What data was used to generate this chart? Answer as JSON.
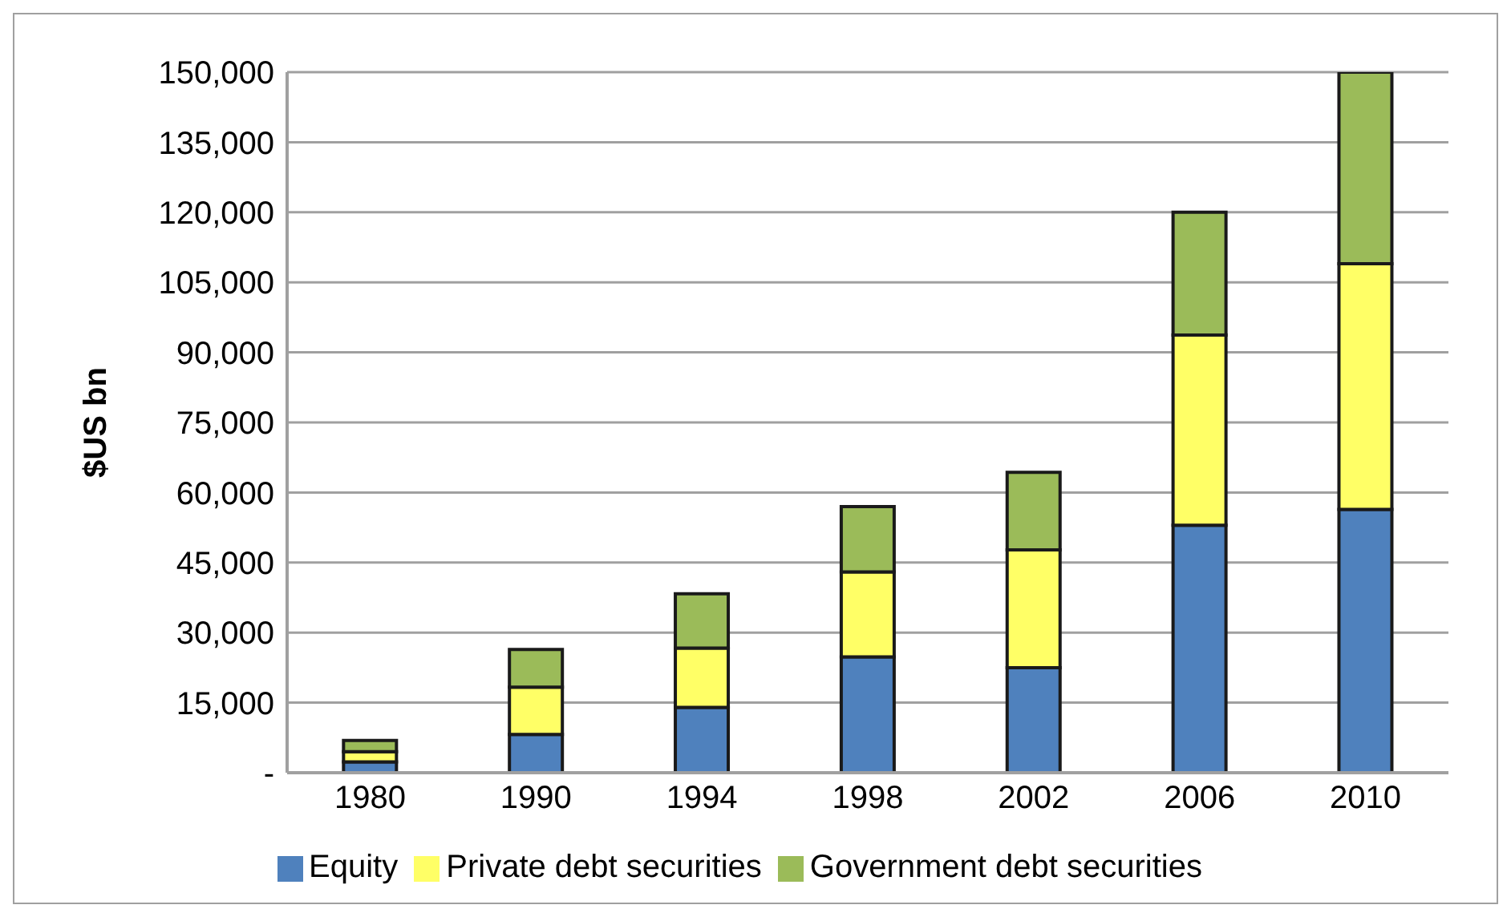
{
  "chart_data": {
    "type": "bar",
    "stacked": true,
    "ylabel": "$US bn",
    "categories": [
      "1980",
      "1990",
      "1994",
      "1998",
      "2002",
      "2006",
      "2010"
    ],
    "series": [
      {
        "name": "Equity",
        "color": "#4f81bd",
        "values": [
          2300,
          8200,
          14000,
          24800,
          22500,
          53000,
          56400
        ]
      },
      {
        "name": "Private debt securities",
        "color": "#ffff66",
        "values": [
          2200,
          10100,
          12700,
          18200,
          25200,
          40700,
          52600
        ]
      },
      {
        "name": "Government debt securities",
        "color": "#9bbb59",
        "values": [
          2400,
          8100,
          11600,
          14000,
          16600,
          26300,
          41000
        ]
      }
    ],
    "ylim": [
      0,
      150000
    ],
    "yticks": [
      {
        "value": 0,
        "label": "-"
      },
      {
        "value": 15000,
        "label": "15,000"
      },
      {
        "value": 30000,
        "label": "30,000"
      },
      {
        "value": 45000,
        "label": "45,000"
      },
      {
        "value": 60000,
        "label": "60,000"
      },
      {
        "value": 75000,
        "label": "75,000"
      },
      {
        "value": 90000,
        "label": "90,000"
      },
      {
        "value": 105000,
        "label": "105,000"
      },
      {
        "value": 120000,
        "label": "120,000"
      },
      {
        "value": 135000,
        "label": "135,000"
      },
      {
        "value": 150000,
        "label": "150,000"
      }
    ],
    "grid": "y",
    "legend": "bottom"
  }
}
